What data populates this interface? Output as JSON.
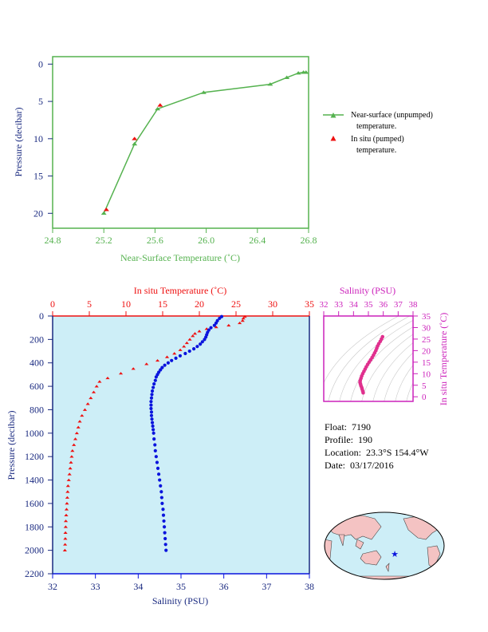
{
  "colors": {
    "green": "#55b24f",
    "red": "#ee1111",
    "blue": "#0a14dd",
    "magenta": "#cc22bb",
    "navy": "#1a2a80",
    "plot_bg": "#cdeef7",
    "land": "#f4c3c3",
    "ocean_map": "#cdeef7"
  },
  "info": {
    "float_label": "Float:",
    "float": "7190",
    "profile_label": "Profile:",
    "profile": "190",
    "location_label": "Location:",
    "location": "23.3°S  154.4°W",
    "date_label": "Date:",
    "date": "03/17/2016"
  },
  "chart_data": [
    {
      "type": "line",
      "id": "near-surface",
      "xlabel": "Near-Surface Temperature (˚C)",
      "ylabel": "Pressure (decibar)",
      "xlim": [
        24.8,
        26.8
      ],
      "ylim": [
        22,
        -1
      ],
      "xticks": [
        "24.8",
        "25.2",
        "25.6",
        "26.0",
        "26.4",
        "26.8"
      ],
      "yticks": [
        "0",
        "5",
        "10",
        "15",
        "20"
      ],
      "series": [
        {
          "name": "Near-surface (unpumped) temperature.",
          "marker": "triangle",
          "points": [
            [
              25.2,
              20.0
            ],
            [
              25.44,
              10.7
            ],
            [
              25.62,
              6.0
            ],
            [
              25.98,
              3.8
            ],
            [
              26.5,
              2.7
            ],
            [
              26.63,
              1.8
            ],
            [
              26.72,
              1.2
            ],
            [
              26.76,
              1.1
            ],
            [
              26.78,
              1.1
            ]
          ]
        },
        {
          "name": "In situ (pumped) temperature.",
          "marker": "triangle",
          "points": [
            [
              25.22,
              19.5
            ],
            [
              25.44,
              10.0
            ],
            [
              25.64,
              5.5
            ]
          ]
        }
      ],
      "legend": {
        "position": "right",
        "entries": [
          {
            "line1": "Near-surface (unpumped)",
            "line2": "temperature."
          },
          {
            "line1": "In situ (pumped)",
            "line2": "temperature."
          }
        ]
      }
    },
    {
      "type": "scatter",
      "id": "profile",
      "top_xlabel": "In situ Temperature (˚C)",
      "bottom_xlabel": "Salinity (PSU)",
      "ylabel": "Pressure (decibar)",
      "temp_xlim": [
        0,
        35
      ],
      "sal_xlim": [
        32,
        38
      ],
      "ylim": [
        2200,
        0
      ],
      "temp_ticks": [
        "0",
        "5",
        "10",
        "15",
        "20",
        "25",
        "30",
        "35"
      ],
      "sal_ticks": [
        "32",
        "33",
        "34",
        "35",
        "36",
        "37",
        "38"
      ],
      "yticks": [
        "0",
        "200",
        "400",
        "600",
        "800",
        "1000",
        "1200",
        "1400",
        "1600",
        "1800",
        "2000",
        "2200"
      ],
      "temperature": [
        [
          26.2,
          5
        ],
        [
          26.0,
          20
        ],
        [
          25.9,
          40
        ],
        [
          25.5,
          60
        ],
        [
          24.0,
          80
        ],
        [
          22.3,
          95
        ],
        [
          21.0,
          110
        ],
        [
          20.0,
          130
        ],
        [
          19.4,
          150
        ],
        [
          19.1,
          170
        ],
        [
          18.7,
          200
        ],
        [
          18.3,
          230
        ],
        [
          17.9,
          260
        ],
        [
          17.4,
          290
        ],
        [
          16.6,
          320
        ],
        [
          15.6,
          350
        ],
        [
          14.3,
          380
        ],
        [
          12.8,
          410
        ],
        [
          11.0,
          450
        ],
        [
          9.3,
          490
        ],
        [
          7.5,
          530
        ],
        [
          6.4,
          560
        ],
        [
          6.0,
          600
        ],
        [
          5.6,
          650
        ],
        [
          5.2,
          700
        ],
        [
          4.8,
          750
        ],
        [
          4.4,
          800
        ],
        [
          4.0,
          850
        ],
        [
          3.7,
          900
        ],
        [
          3.5,
          950
        ],
        [
          3.3,
          1000
        ],
        [
          3.1,
          1050
        ],
        [
          2.9,
          1100
        ],
        [
          2.7,
          1150
        ],
        [
          2.6,
          1200
        ],
        [
          2.5,
          1250
        ],
        [
          2.4,
          1300
        ],
        [
          2.3,
          1350
        ],
        [
          2.2,
          1400
        ],
        [
          2.1,
          1450
        ],
        [
          2.05,
          1500
        ],
        [
          2.0,
          1550
        ],
        [
          1.95,
          1600
        ],
        [
          1.9,
          1650
        ],
        [
          1.85,
          1700
        ],
        [
          1.8,
          1750
        ],
        [
          1.78,
          1800
        ],
        [
          1.75,
          1850
        ],
        [
          1.73,
          1900
        ],
        [
          1.7,
          1950
        ],
        [
          1.67,
          2000
        ]
      ],
      "salinity": [
        [
          35.95,
          5
        ],
        [
          35.9,
          20
        ],
        [
          35.85,
          40
        ],
        [
          35.82,
          60
        ],
        [
          35.78,
          80
        ],
        [
          35.7,
          100
        ],
        [
          35.65,
          120
        ],
        [
          35.62,
          140
        ],
        [
          35.6,
          160
        ],
        [
          35.58,
          180
        ],
        [
          35.55,
          200
        ],
        [
          35.5,
          220
        ],
        [
          35.45,
          240
        ],
        [
          35.38,
          260
        ],
        [
          35.3,
          280
        ],
        [
          35.2,
          300
        ],
        [
          35.1,
          320
        ],
        [
          34.98,
          340
        ],
        [
          34.88,
          360
        ],
        [
          34.78,
          380
        ],
        [
          34.7,
          400
        ],
        [
          34.62,
          420
        ],
        [
          34.56,
          440
        ],
        [
          34.52,
          460
        ],
        [
          34.48,
          480
        ],
        [
          34.45,
          500
        ],
        [
          34.42,
          520
        ],
        [
          34.4,
          550
        ],
        [
          34.37,
          580
        ],
        [
          34.35,
          610
        ],
        [
          34.33,
          640
        ],
        [
          34.32,
          670
        ],
        [
          34.31,
          700
        ],
        [
          34.3,
          730
        ],
        [
          34.3,
          760
        ],
        [
          34.3,
          790
        ],
        [
          34.31,
          820
        ],
        [
          34.31,
          850
        ],
        [
          34.32,
          880
        ],
        [
          34.33,
          910
        ],
        [
          34.34,
          940
        ],
        [
          34.35,
          970
        ],
        [
          34.36,
          1000
        ],
        [
          34.37,
          1050
        ],
        [
          34.39,
          1100
        ],
        [
          34.4,
          1150
        ],
        [
          34.42,
          1200
        ],
        [
          34.44,
          1250
        ],
        [
          34.46,
          1300
        ],
        [
          34.48,
          1350
        ],
        [
          34.5,
          1400
        ],
        [
          34.52,
          1450
        ],
        [
          34.54,
          1500
        ],
        [
          34.55,
          1550
        ],
        [
          34.56,
          1600
        ],
        [
          34.58,
          1650
        ],
        [
          34.59,
          1700
        ],
        [
          34.6,
          1750
        ],
        [
          34.61,
          1800
        ],
        [
          34.62,
          1850
        ],
        [
          34.63,
          1900
        ],
        [
          34.64,
          1950
        ],
        [
          34.65,
          2000
        ]
      ]
    },
    {
      "type": "scatter",
      "id": "ts-diagram",
      "top_xlabel": "Salinity (PSU)",
      "ylabel": "In situ Temperature (˚C)",
      "xlim": [
        32,
        38
      ],
      "ylim": [
        -2,
        35
      ],
      "xticks": [
        "32",
        "33",
        "34",
        "35",
        "36",
        "37",
        "38"
      ],
      "yticks": [
        "0",
        "5",
        "10",
        "15",
        "20",
        "25",
        "30",
        "35"
      ],
      "points": [
        [
          34.65,
          1.7
        ],
        [
          34.62,
          2.5
        ],
        [
          34.58,
          3.3
        ],
        [
          34.55,
          4.0
        ],
        [
          34.5,
          4.8
        ],
        [
          34.47,
          5.5
        ],
        [
          34.44,
          6.2
        ],
        [
          34.45,
          7.0
        ],
        [
          34.5,
          8.0
        ],
        [
          34.55,
          9.0
        ],
        [
          34.62,
          10.0
        ],
        [
          34.7,
          11.0
        ],
        [
          34.78,
          12.0
        ],
        [
          34.86,
          13.0
        ],
        [
          34.95,
          14.0
        ],
        [
          35.05,
          15.0
        ],
        [
          35.15,
          16.0
        ],
        [
          35.25,
          17.0
        ],
        [
          35.34,
          18.0
        ],
        [
          35.42,
          19.0
        ],
        [
          35.5,
          20.0
        ],
        [
          35.56,
          21.0
        ],
        [
          35.62,
          22.0
        ],
        [
          35.7,
          23.0
        ],
        [
          35.8,
          24.0
        ],
        [
          35.88,
          25.0
        ],
        [
          35.95,
          26.0
        ]
      ]
    }
  ]
}
